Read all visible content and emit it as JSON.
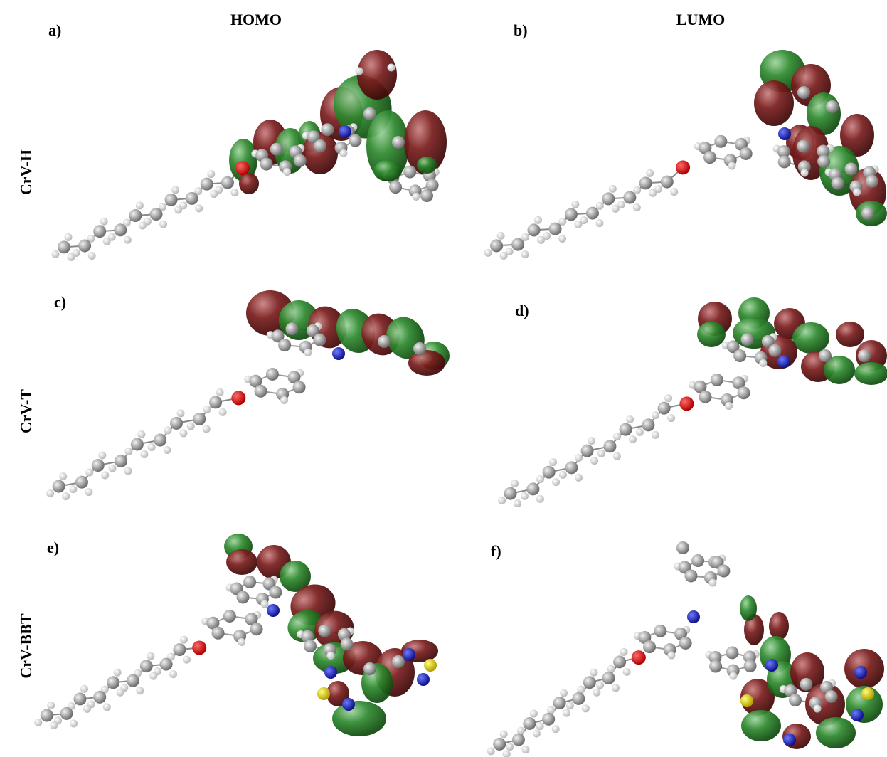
{
  "column_headers": [
    "HOMO",
    "LUMO"
  ],
  "row_labels": [
    "CrV-H",
    "CrV-T",
    "CrV-BBT"
  ],
  "panels": [
    {
      "label": "a)"
    },
    {
      "label": "b)"
    },
    {
      "label": "c)"
    },
    {
      "label": "d)"
    },
    {
      "label": "e)"
    },
    {
      "label": "f)"
    }
  ]
}
